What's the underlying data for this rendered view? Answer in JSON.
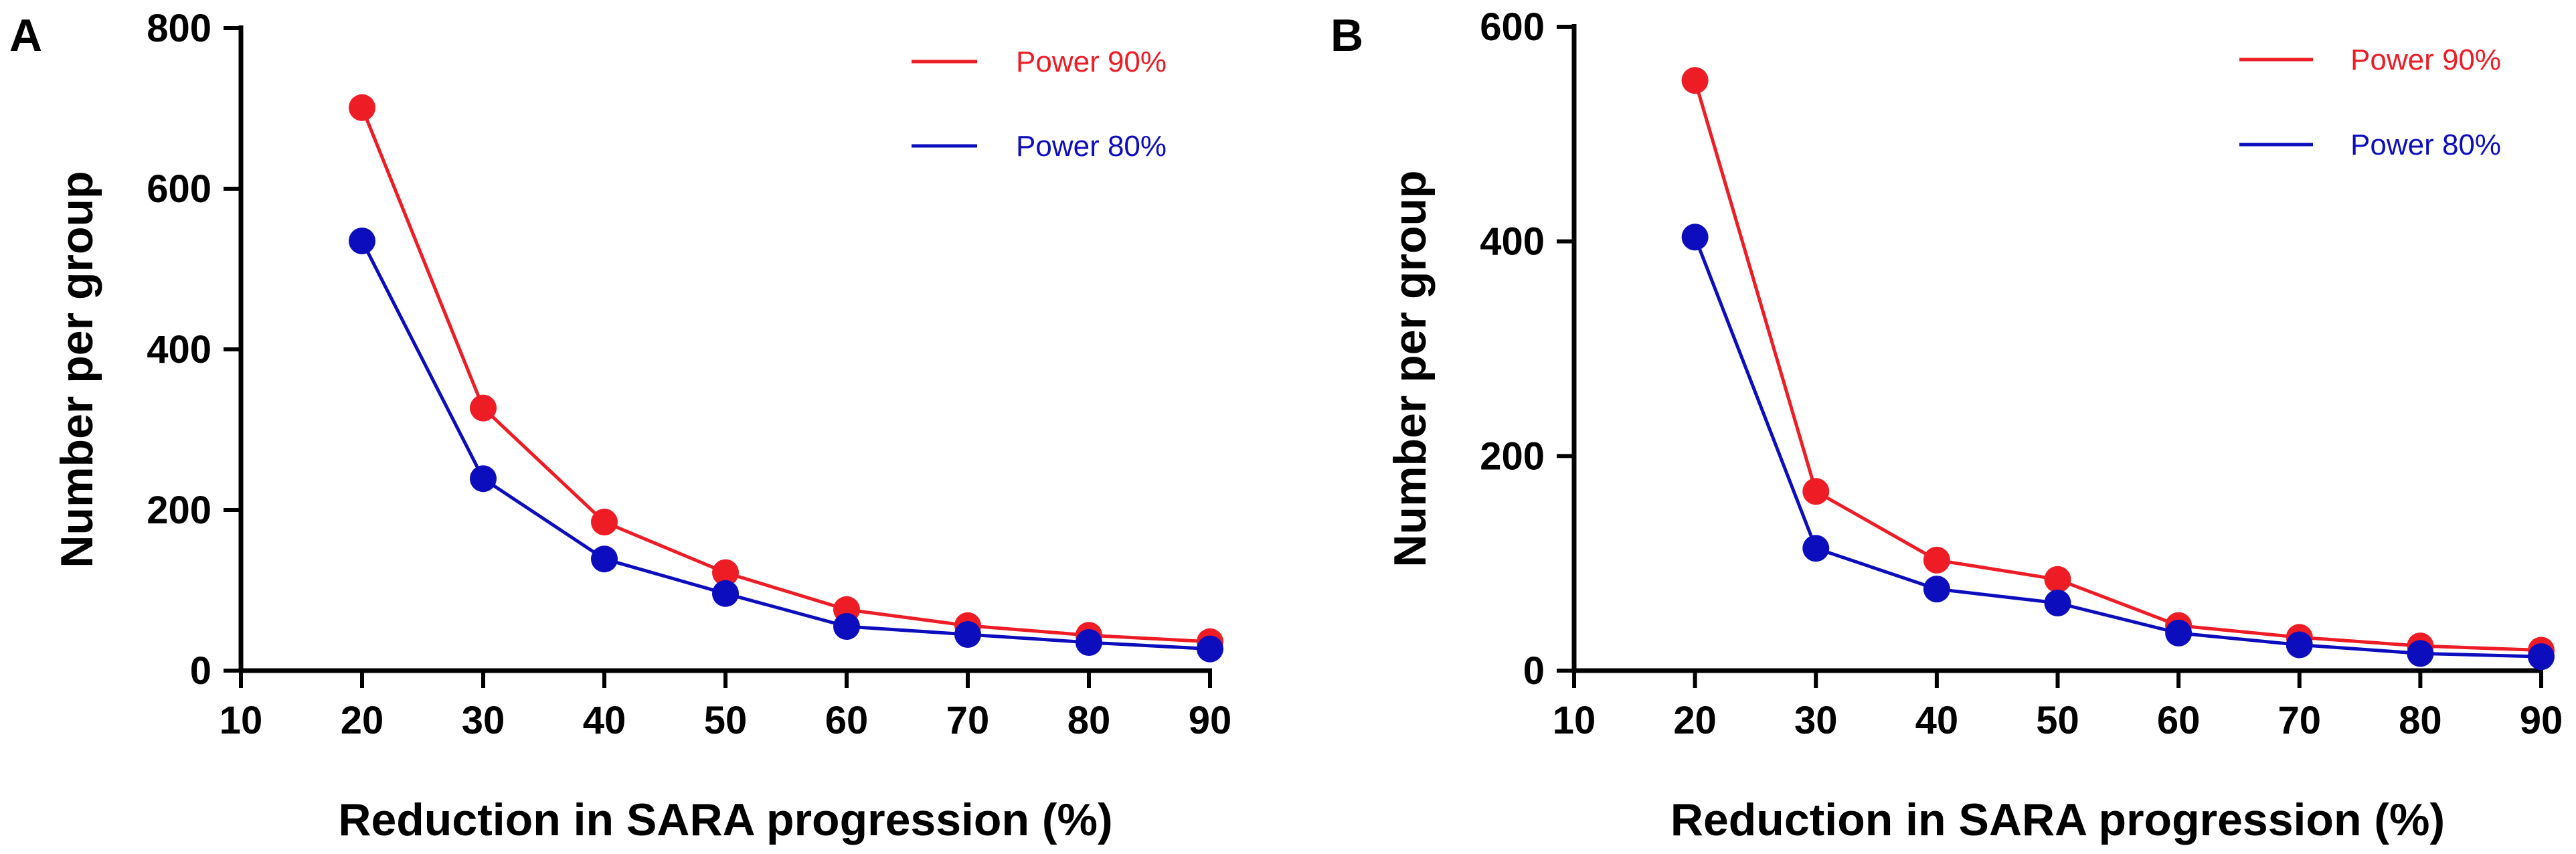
{
  "chart_data": [
    {
      "panel": "A",
      "type": "line",
      "title": "",
      "xlabel": "Reduction in SARA progression (%)",
      "ylabel": "Number per group",
      "xlim": [
        10,
        90
      ],
      "ylim": [
        0,
        800
      ],
      "xticks": [
        10,
        20,
        30,
        40,
        50,
        60,
        70,
        80,
        90
      ],
      "yticks": [
        0,
        200,
        400,
        600,
        800
      ],
      "legend": "top-right",
      "grid": false,
      "x": [
        20,
        30,
        40,
        50,
        60,
        70,
        80,
        90
      ],
      "series": [
        {
          "name": "Power 90%",
          "color": "#ee1c25",
          "values": [
            701,
            327,
            185,
            122,
            76,
            56,
            44,
            36
          ]
        },
        {
          "name": "Power 80%",
          "color": "#0c0ebe",
          "values": [
            535,
            239,
            139,
            96,
            55,
            45,
            35,
            27
          ]
        }
      ]
    },
    {
      "panel": "B",
      "type": "line",
      "title": "",
      "xlabel": "Reduction in SARA progression (%)",
      "ylabel": "Number per group",
      "xlim": [
        10,
        90
      ],
      "ylim": [
        0,
        600
      ],
      "xticks": [
        10,
        20,
        30,
        40,
        50,
        60,
        70,
        80,
        90
      ],
      "yticks": [
        0,
        200,
        400,
        600
      ],
      "legend": "top-right",
      "grid": false,
      "x": [
        20,
        30,
        40,
        50,
        60,
        70,
        80,
        90
      ],
      "series": [
        {
          "name": "Power 90%",
          "color": "#ee1c25",
          "values": [
            550,
            167,
            103,
            85,
            42,
            31,
            23,
            19
          ]
        },
        {
          "name": "Power 80%",
          "color": "#0c0ebe",
          "values": [
            404,
            114,
            76,
            63,
            35,
            24,
            16,
            13
          ]
        }
      ]
    }
  ]
}
